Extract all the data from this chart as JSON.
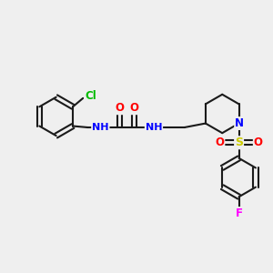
{
  "bg_color": "#efefef",
  "bond_color": "#1a1a1a",
  "bond_width": 1.5,
  "atom_colors": {
    "C": "#1a1a1a",
    "N": "#0000ff",
    "O": "#ff0000",
    "S": "#cccc00",
    "Cl": "#00bb00",
    "F": "#ff00ff",
    "H": "#666666"
  },
  "font_size": 8.5
}
